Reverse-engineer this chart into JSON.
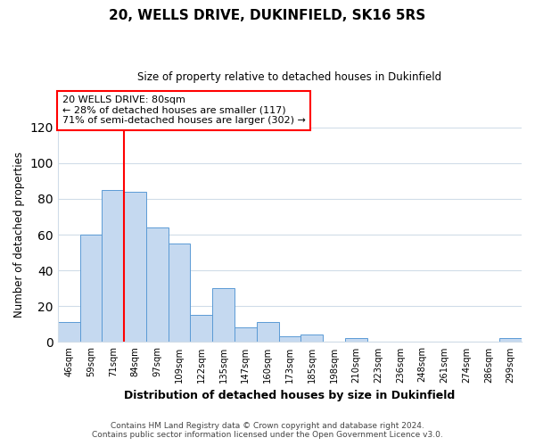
{
  "title": "20, WELLS DRIVE, DUKINFIELD, SK16 5RS",
  "subtitle": "Size of property relative to detached houses in Dukinfield",
  "xlabel": "Distribution of detached houses by size in Dukinfield",
  "ylabel": "Number of detached properties",
  "bar_labels": [
    "46sqm",
    "59sqm",
    "71sqm",
    "84sqm",
    "97sqm",
    "109sqm",
    "122sqm",
    "135sqm",
    "147sqm",
    "160sqm",
    "173sqm",
    "185sqm",
    "198sqm",
    "210sqm",
    "223sqm",
    "236sqm",
    "248sqm",
    "261sqm",
    "274sqm",
    "286sqm",
    "299sqm"
  ],
  "bar_heights": [
    11,
    60,
    85,
    84,
    64,
    55,
    15,
    30,
    8,
    11,
    3,
    4,
    0,
    2,
    0,
    0,
    0,
    0,
    0,
    0,
    2
  ],
  "bar_color": "#c5d9f0",
  "bar_edge_color": "#5b9bd5",
  "vline_x_index": 3,
  "vline_color": "#ff0000",
  "ylim": [
    0,
    120
  ],
  "yticks": [
    0,
    20,
    40,
    60,
    80,
    100,
    120
  ],
  "annotation_line1": "20 WELLS DRIVE: 80sqm",
  "annotation_line2": "← 28% of detached houses are smaller (117)",
  "annotation_line3": "71% of semi-detached houses are larger (302) →",
  "footer_line1": "Contains HM Land Registry data © Crown copyright and database right 2024.",
  "footer_line2": "Contains public sector information licensed under the Open Government Licence v3.0.",
  "background_color": "#ffffff",
  "grid_color": "#d0dce8"
}
